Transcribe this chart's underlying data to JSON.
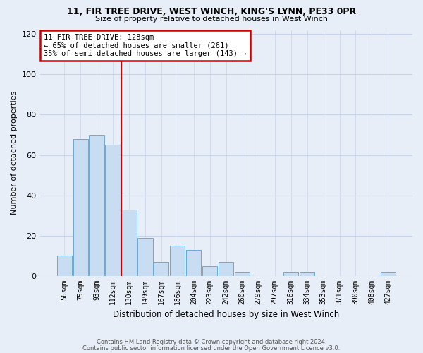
{
  "title1": "11, FIR TREE DRIVE, WEST WINCH, KING'S LYNN, PE33 0PR",
  "title2": "Size of property relative to detached houses in West Winch",
  "xlabel": "Distribution of detached houses by size in West Winch",
  "ylabel": "Number of detached properties",
  "categories": [
    "56sqm",
    "75sqm",
    "93sqm",
    "112sqm",
    "130sqm",
    "149sqm",
    "167sqm",
    "186sqm",
    "204sqm",
    "223sqm",
    "242sqm",
    "260sqm",
    "279sqm",
    "297sqm",
    "316sqm",
    "334sqm",
    "353sqm",
    "371sqm",
    "390sqm",
    "408sqm",
    "427sqm"
  ],
  "values": [
    10,
    68,
    70,
    65,
    33,
    19,
    7,
    15,
    13,
    5,
    7,
    2,
    0,
    0,
    2,
    2,
    0,
    0,
    0,
    0,
    2
  ],
  "bar_color": "#c9ddf2",
  "bar_edge_color": "#6aaad4",
  "vline_x": 3.5,
  "annotation_text": "11 FIR TREE DRIVE: 128sqm\n← 65% of detached houses are smaller (261)\n35% of semi-detached houses are larger (143) →",
  "annotation_box_color": "#ffffff",
  "annotation_box_edge_color": "#cc0000",
  "ylim": [
    0,
    122
  ],
  "yticks": [
    0,
    20,
    40,
    60,
    80,
    100,
    120
  ],
  "footer1": "Contains HM Land Registry data © Crown copyright and database right 2024.",
  "footer2": "Contains public sector information licensed under the Open Government Licence v3.0.",
  "bg_color": "#e8eef8",
  "plot_bg_color": "#e8eef8",
  "grid_color": "#c8d4e8"
}
